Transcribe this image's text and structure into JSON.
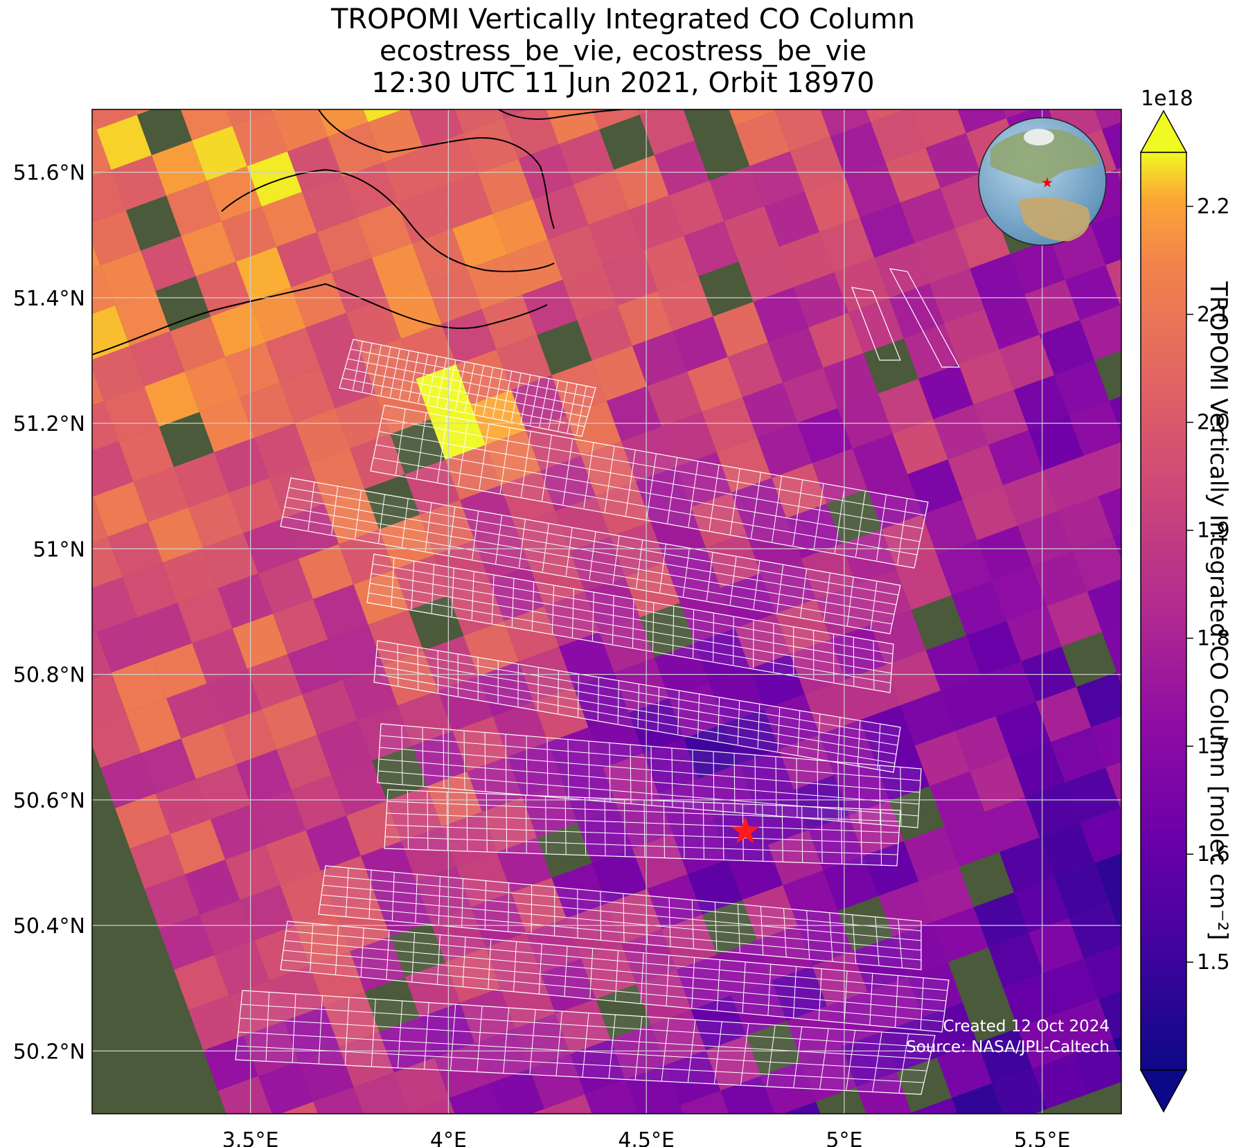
{
  "title": {
    "line1": "TROPOMI Vertically Integrated CO Column",
    "line2": "ecostress_be_vie, ecostress_be_vie",
    "line3": "12:30 UTC 11 Jun 2021, Orbit 18970"
  },
  "axes": {
    "lon_range": [
      3.1,
      5.7
    ],
    "lat_range": [
      50.1,
      51.7
    ],
    "x_ticks": [
      {
        "value": 3.5,
        "label": "3.5°E"
      },
      {
        "value": 4.0,
        "label": "4°E"
      },
      {
        "value": 4.5,
        "label": "4.5°E"
      },
      {
        "value": 5.0,
        "label": "5°E"
      },
      {
        "value": 5.5,
        "label": "5.5°E"
      }
    ],
    "y_ticks": [
      {
        "value": 51.6,
        "label": "51.6°N"
      },
      {
        "value": 51.4,
        "label": "51.4°N"
      },
      {
        "value": 51.2,
        "label": "51.2°N"
      },
      {
        "value": 51.0,
        "label": "51°N"
      },
      {
        "value": 50.8,
        "label": "50.8°N"
      },
      {
        "value": 50.6,
        "label": "50.6°N"
      },
      {
        "value": 50.4,
        "label": "50.4°N"
      },
      {
        "value": 50.2,
        "label": "50.2°N"
      }
    ]
  },
  "colorbar": {
    "label": "TROPOMI Vertically Integrated CO Column [molec cm⁻²]",
    "exponent": "1e18",
    "range": [
      1.4,
      2.25
    ],
    "ticks": [
      {
        "value": 1.5,
        "label": "1.5"
      },
      {
        "value": 1.6,
        "label": "1.6"
      },
      {
        "value": 1.7,
        "label": "1.7"
      },
      {
        "value": 1.8,
        "label": "1.8"
      },
      {
        "value": 1.9,
        "label": "1.9"
      },
      {
        "value": 2.0,
        "label": "2.0"
      },
      {
        "value": 2.1,
        "label": "2.1"
      },
      {
        "value": 2.2,
        "label": "2.2"
      }
    ],
    "colormap": "plasma"
  },
  "site_marker": {
    "lon": 4.75,
    "lat": 50.55,
    "color": "#ff1a1a",
    "icon": "star-icon"
  },
  "credit": {
    "created": "Created 12 Oct 2024",
    "source": "Source: NASA/JPL-Caltech"
  },
  "inset": {
    "icon": "globe-icon",
    "marker_color": "#ff0000"
  }
}
